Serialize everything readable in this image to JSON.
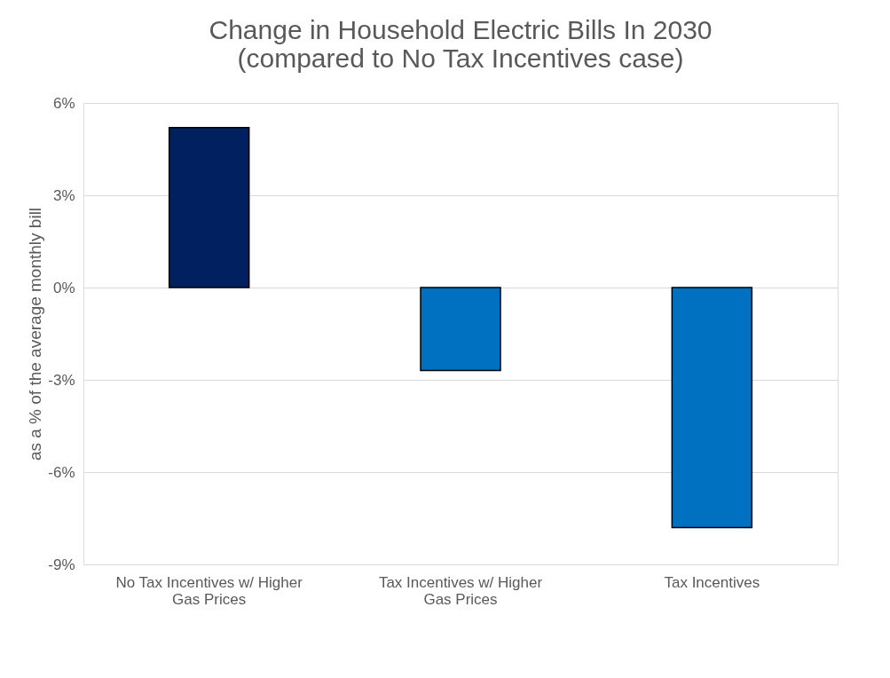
{
  "chart_data": {
    "type": "bar",
    "title": "Change in Household Electric Bills In 2030 (compared to No Tax Incentives case)",
    "ylabel": "as a % of the average monthly bill",
    "categories": [
      "No Tax Incentives w/ Higher Gas Prices",
      "Tax Incentives w/ Higher Gas Prices",
      "Tax Incentives"
    ],
    "values": [
      5.2,
      -2.7,
      -7.8
    ],
    "colors": [
      "#002060",
      "#0070c0",
      "#0070c0"
    ],
    "ylim": [
      -9,
      6
    ],
    "yticks": [
      {
        "value": -9,
        "label": "-9%"
      },
      {
        "value": -6,
        "label": "-6%"
      },
      {
        "value": -3,
        "label": "-3%"
      },
      {
        "value": 0,
        "label": "0%"
      },
      {
        "value": 3,
        "label": "3%"
      },
      {
        "value": 6,
        "label": "6%"
      }
    ],
    "grid": "y"
  }
}
